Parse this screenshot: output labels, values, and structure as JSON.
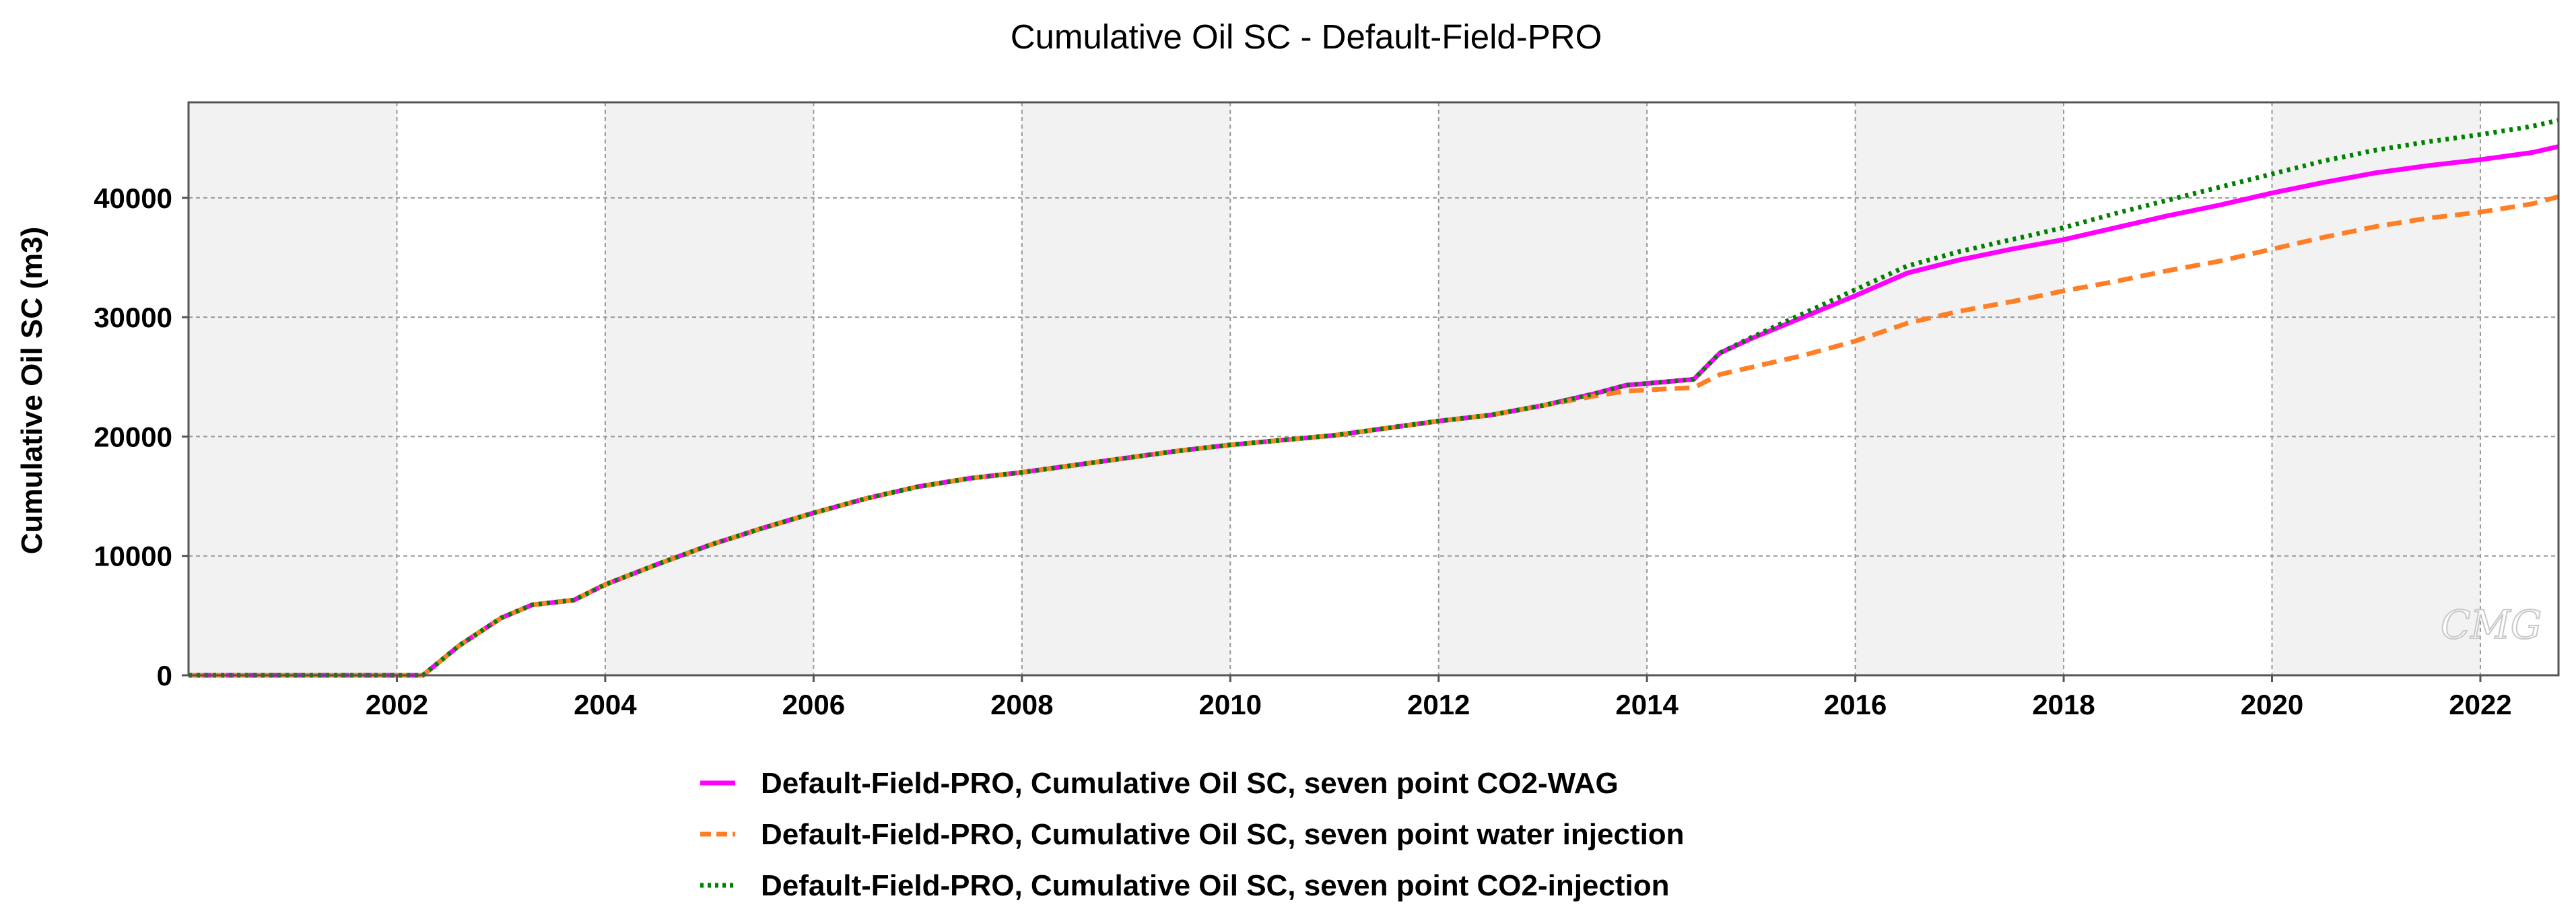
{
  "chart_data": {
    "type": "line",
    "title": "Cumulative Oil SC - Default-Field-PRO",
    "xlabel": "",
    "ylabel": "Cumulative Oil SC (m3)",
    "xlim": [
      2000.0,
      2022.75
    ],
    "ylim": [
      0,
      48000
    ],
    "x_ticks": [
      "2002",
      "2004",
      "2006",
      "2008",
      "2010",
      "2012",
      "2014",
      "2016",
      "2018",
      "2020",
      "2022"
    ],
    "y_ticks": [
      "0",
      "10000",
      "20000",
      "30000",
      "40000"
    ],
    "grid": true,
    "legend_position": "bottom",
    "watermark": "CMG",
    "series": [
      {
        "name": "Default-Field-PRO, Cumulative Oil SC, seven point CO2-WAG",
        "color": "#ff00ff",
        "style": "solid",
        "x": [
          2000.0,
          2002.1,
          2002.25,
          2002.6,
          2003.0,
          2003.3,
          2003.7,
          2004.0,
          2004.5,
          2005.0,
          2005.5,
          2006.0,
          2006.5,
          2007.0,
          2007.5,
          2008.0,
          2008.5,
          2009.0,
          2009.5,
          2010.0,
          2010.5,
          2011.0,
          2011.5,
          2012.0,
          2012.5,
          2013.0,
          2013.5,
          2013.8,
          2014.2,
          2014.45,
          2014.7,
          2015.0,
          2015.5,
          2016.0,
          2016.5,
          2017.0,
          2017.5,
          2018.0,
          2018.5,
          2019.0,
          2019.5,
          2020.0,
          2020.5,
          2021.0,
          2021.5,
          2022.0,
          2022.5,
          2022.75
        ],
        "y": [
          0,
          0,
          0,
          2500,
          4800,
          5900,
          6300,
          7600,
          9300,
          10900,
          12300,
          13600,
          14800,
          15800,
          16500,
          17000,
          17600,
          18200,
          18800,
          19300,
          19700,
          20100,
          20700,
          21300,
          21800,
          22600,
          23600,
          24300,
          24600,
          24800,
          27000,
          28200,
          30000,
          31800,
          33700,
          34800,
          35700,
          36500,
          37500,
          38500,
          39400,
          40400,
          41300,
          42100,
          42700,
          43200,
          43800,
          44300
        ]
      },
      {
        "name": "Default-Field-PRO, Cumulative Oil SC, seven point water injection",
        "color": "#ff7f27",
        "style": "dashed",
        "x": [
          2000.0,
          2002.1,
          2002.25,
          2002.6,
          2003.0,
          2003.3,
          2003.7,
          2004.0,
          2004.5,
          2005.0,
          2005.5,
          2006.0,
          2006.5,
          2007.0,
          2007.5,
          2008.0,
          2008.5,
          2009.0,
          2009.5,
          2010.0,
          2010.5,
          2011.0,
          2011.5,
          2012.0,
          2012.5,
          2013.0,
          2013.5,
          2013.8,
          2014.2,
          2014.45,
          2014.7,
          2015.0,
          2015.5,
          2016.0,
          2016.5,
          2017.0,
          2017.5,
          2018.0,
          2018.5,
          2019.0,
          2019.5,
          2020.0,
          2020.5,
          2021.0,
          2021.5,
          2022.0,
          2022.5,
          2022.75
        ],
        "y": [
          0,
          0,
          0,
          2500,
          4800,
          5900,
          6300,
          7600,
          9300,
          10900,
          12300,
          13600,
          14800,
          15800,
          16500,
          17000,
          17600,
          18200,
          18800,
          19300,
          19700,
          20100,
          20700,
          21300,
          21800,
          22600,
          23400,
          23800,
          24000,
          24100,
          25200,
          25800,
          26800,
          28000,
          29500,
          30500,
          31300,
          32200,
          33000,
          33900,
          34700,
          35700,
          36700,
          37600,
          38300,
          38800,
          39500,
          40100
        ]
      },
      {
        "name": "Default-Field-PRO, Cumulative Oil SC, seven point CO2-injection",
        "color": "#008000",
        "style": "dotted",
        "x": [
          2000.0,
          2002.1,
          2002.25,
          2002.6,
          2003.0,
          2003.3,
          2003.7,
          2004.0,
          2004.5,
          2005.0,
          2005.5,
          2006.0,
          2006.5,
          2007.0,
          2007.5,
          2008.0,
          2008.5,
          2009.0,
          2009.5,
          2010.0,
          2010.5,
          2011.0,
          2011.5,
          2012.0,
          2012.5,
          2013.0,
          2013.5,
          2013.8,
          2014.2,
          2014.45,
          2014.7,
          2015.0,
          2015.5,
          2016.0,
          2016.5,
          2017.0,
          2017.5,
          2018.0,
          2018.5,
          2019.0,
          2019.5,
          2020.0,
          2020.5,
          2021.0,
          2021.5,
          2022.0,
          2022.5,
          2022.75
        ],
        "y": [
          0,
          0,
          0,
          2500,
          4800,
          5900,
          6300,
          7600,
          9300,
          10900,
          12300,
          13600,
          14800,
          15800,
          16500,
          17000,
          17600,
          18200,
          18800,
          19300,
          19700,
          20100,
          20700,
          21300,
          21800,
          22600,
          23600,
          24300,
          24600,
          24800,
          27000,
          28300,
          30300,
          32300,
          34300,
          35500,
          36500,
          37500,
          38700,
          39800,
          40900,
          42000,
          43100,
          44000,
          44700,
          45300,
          46000,
          46500
        ]
      }
    ]
  }
}
